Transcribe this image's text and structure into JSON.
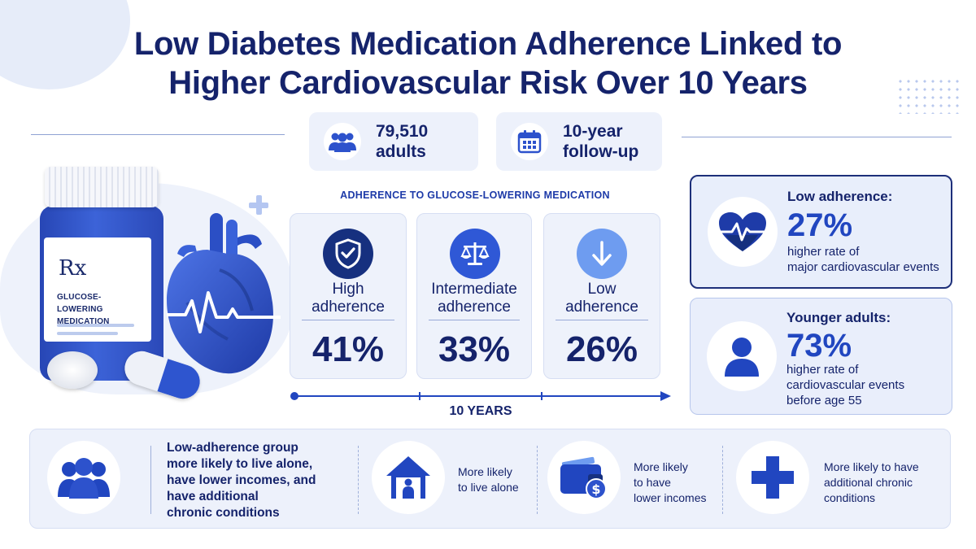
{
  "title_line1": "Low Diabetes Medication Adherence Linked to",
  "title_line2": "Higher Cardiovascular Risk Over 10 Years",
  "stats": {
    "adults_line1": "79,510",
    "adults_line2": "adults",
    "adults_icon": "people-icon",
    "followup_line1": "10-year",
    "followup_line2": "follow-up",
    "followup_icon": "calendar-icon"
  },
  "bottle": {
    "rx": "Rx",
    "label_line1": "GLUCOSE-LOWERING",
    "label_line2": "MEDICATION"
  },
  "adherence": {
    "section_title": "ADHERENCE TO GLUCOSE-LOWERING MEDICATION",
    "cards": [
      {
        "label_line1": "High",
        "label_line2": "adherence",
        "value": "41%",
        "icon": "shield-check-icon",
        "color": "#16307f"
      },
      {
        "label_line1": "Intermediate",
        "label_line2": "adherence",
        "value": "33%",
        "icon": "balance-scale-icon",
        "color": "#2f58d6"
      },
      {
        "label_line1": "Low",
        "label_line2": "adherence",
        "value": "26%",
        "icon": "arrow-down-icon",
        "color": "#6e9cf0"
      }
    ],
    "timeline_label": "10 YEARS"
  },
  "findings": {
    "low": {
      "heading": "Low adherence:",
      "value": "27%",
      "line1": "higher rate of",
      "line2": "major cardiovascular events",
      "icon": "heart-pulse-icon"
    },
    "young": {
      "heading": "Younger adults:",
      "value": "73%",
      "line1": "higher rate of",
      "line2": "cardiovascular events",
      "line3": "before age 55",
      "icon": "person-icon"
    }
  },
  "bottom": {
    "summary_line1": "Low-adherence group",
    "summary_line2": "more likely to live alone,",
    "summary_line3": "have lower incomes, and",
    "summary_line4": "have additional",
    "summary_line5": "chronic conditions",
    "item1_line1": "More likely",
    "item1_line2": "to live alone",
    "item2_line1": "More likely",
    "item2_line2": "to have",
    "item2_line3": "lower incomes",
    "item3_line1": "More likely to have",
    "item3_line2": "additional chronic",
    "item3_line3": "conditions",
    "icons": [
      "group-icon",
      "house-person-icon",
      "wallet-dollar-icon",
      "medical-cross-icon"
    ]
  },
  "colors": {
    "navy": "#15236b",
    "accent_blue": "#2146c0",
    "light_panel": "#edf1fb"
  }
}
